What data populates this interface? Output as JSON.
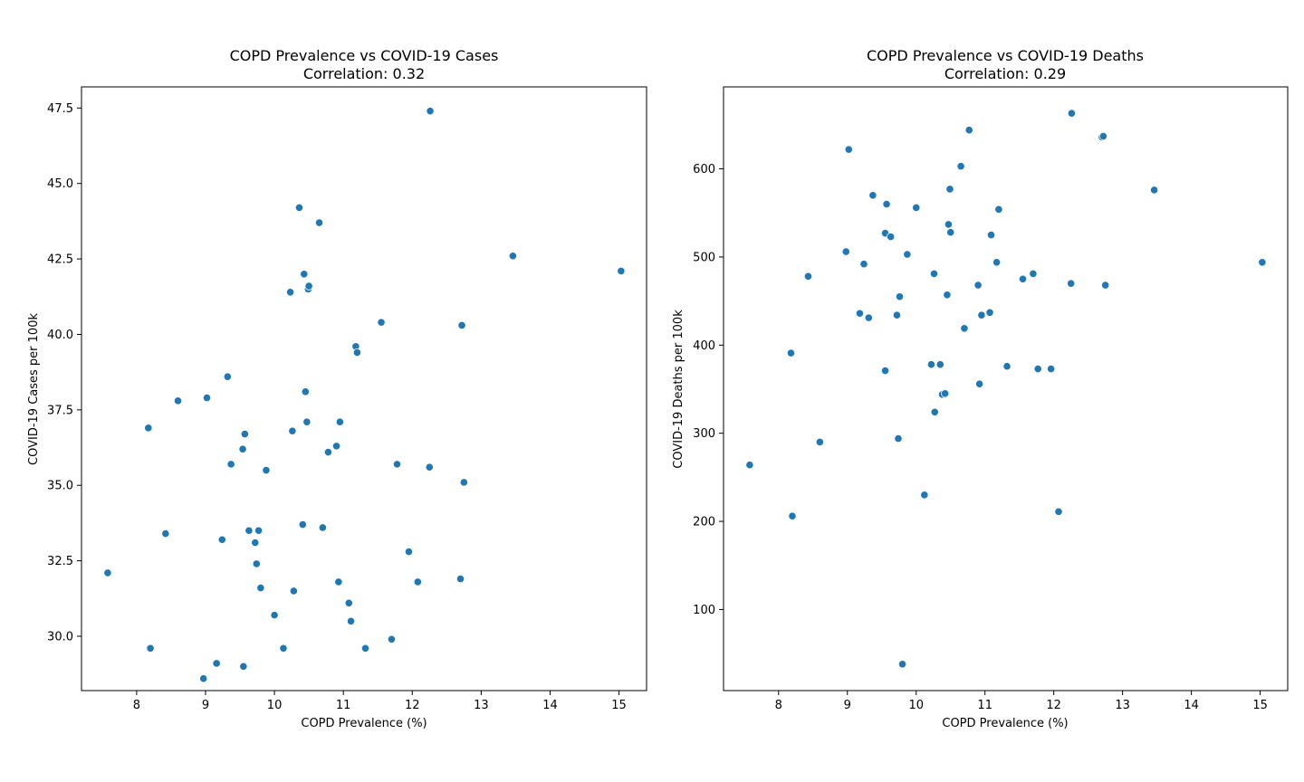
{
  "chart_data": [
    {
      "type": "scatter",
      "title": "COPD Prevalence vs COVID-19 Cases",
      "subtitle": "Correlation: 0.32",
      "xlabel": "COPD Prevalence (%)",
      "ylabel": "COVID-19 Cases per 100k",
      "xlim": [
        7.2,
        15.4
      ],
      "ylim": [
        28.2,
        48.2
      ],
      "xticks": [
        8,
        9,
        10,
        11,
        12,
        13,
        14,
        15
      ],
      "yticks": [
        30.0,
        32.5,
        35.0,
        37.5,
        40.0,
        42.5,
        45.0,
        47.5
      ],
      "xtick_labels": [
        "8",
        "9",
        "10",
        "11",
        "12",
        "13",
        "14",
        "15"
      ],
      "ytick_labels": [
        "30.0",
        "32.5",
        "35.0",
        "37.5",
        "40.0",
        "42.5",
        "45.0",
        "47.5"
      ],
      "grid": false,
      "marker_color": "#1f77b4",
      "series": [
        {
          "points": [
            [
              7.58,
              32.1
            ],
            [
              8.17,
              36.9
            ],
            [
              8.2,
              29.6
            ],
            [
              8.42,
              33.4
            ],
            [
              8.6,
              37.8
            ],
            [
              8.97,
              28.6
            ],
            [
              9.02,
              37.9
            ],
            [
              9.16,
              29.1
            ],
            [
              9.24,
              33.2
            ],
            [
              9.32,
              38.6
            ],
            [
              9.37,
              35.7
            ],
            [
              9.54,
              36.2
            ],
            [
              9.55,
              29.0
            ],
            [
              9.57,
              36.7
            ],
            [
              9.63,
              33.5
            ],
            [
              9.72,
              33.1
            ],
            [
              9.74,
              32.4
            ],
            [
              9.77,
              33.5
            ],
            [
              9.8,
              31.6
            ],
            [
              9.88,
              35.5
            ],
            [
              10.0,
              30.7
            ],
            [
              10.13,
              29.6
            ],
            [
              10.23,
              41.4
            ],
            [
              10.26,
              36.8
            ],
            [
              10.28,
              31.5
            ],
            [
              10.36,
              44.2
            ],
            [
              10.41,
              33.7
            ],
            [
              10.43,
              42.0
            ],
            [
              10.45,
              38.1
            ],
            [
              10.47,
              37.1
            ],
            [
              10.49,
              41.5
            ],
            [
              10.5,
              41.6
            ],
            [
              10.65,
              43.7
            ],
            [
              10.7,
              33.6
            ],
            [
              10.78,
              36.1
            ],
            [
              10.9,
              36.3
            ],
            [
              10.93,
              31.8
            ],
            [
              10.95,
              37.1
            ],
            [
              11.08,
              31.1
            ],
            [
              11.11,
              30.5
            ],
            [
              11.18,
              39.6
            ],
            [
              11.2,
              39.4
            ],
            [
              11.32,
              29.6
            ],
            [
              11.55,
              40.4
            ],
            [
              11.7,
              29.9
            ],
            [
              11.78,
              35.7
            ],
            [
              11.95,
              32.8
            ],
            [
              12.08,
              31.8
            ],
            [
              12.25,
              35.6
            ],
            [
              12.26,
              47.4
            ],
            [
              12.7,
              31.9
            ],
            [
              12.72,
              40.3
            ],
            [
              12.75,
              35.1
            ],
            [
              13.46,
              42.6
            ],
            [
              15.03,
              42.1
            ]
          ]
        }
      ]
    },
    {
      "type": "scatter",
      "title": "COPD Prevalence vs COVID-19 Deaths",
      "subtitle": "Correlation: 0.29",
      "xlabel": "COPD Prevalence (%)",
      "ylabel": "COVID-19 Deaths per 100k",
      "xlim": [
        7.2,
        15.4
      ],
      "ylim": [
        8,
        693
      ],
      "xticks": [
        8,
        9,
        10,
        11,
        12,
        13,
        14,
        15
      ],
      "yticks": [
        100,
        200,
        300,
        400,
        500,
        600
      ],
      "xtick_labels": [
        "8",
        "9",
        "10",
        "11",
        "12",
        "13",
        "14",
        "15"
      ],
      "ytick_labels": [
        "100",
        "200",
        "300",
        "400",
        "500",
        "600"
      ],
      "grid": false,
      "marker_color": "#1f77b4",
      "series": [
        {
          "points": [
            [
              7.58,
              264
            ],
            [
              8.18,
              391
            ],
            [
              8.2,
              206
            ],
            [
              8.43,
              478
            ],
            [
              8.6,
              290
            ],
            [
              8.98,
              506
            ],
            [
              9.02,
              622
            ],
            [
              9.18,
              436
            ],
            [
              9.24,
              492
            ],
            [
              9.31,
              431
            ],
            [
              9.37,
              570
            ],
            [
              9.55,
              371
            ],
            [
              9.55,
              527
            ],
            [
              9.57,
              560
            ],
            [
              9.63,
              523
            ],
            [
              9.72,
              434
            ],
            [
              9.74,
              294
            ],
            [
              9.76,
              455
            ],
            [
              9.8,
              38
            ],
            [
              9.87,
              503
            ],
            [
              10.0,
              556
            ],
            [
              10.12,
              230
            ],
            [
              10.22,
              378
            ],
            [
              10.26,
              481
            ],
            [
              10.27,
              324
            ],
            [
              10.35,
              378
            ],
            [
              10.38,
              344
            ],
            [
              10.42,
              345
            ],
            [
              10.45,
              457
            ],
            [
              10.47,
              537
            ],
            [
              10.49,
              577
            ],
            [
              10.5,
              528
            ],
            [
              10.65,
              603
            ],
            [
              10.7,
              419
            ],
            [
              10.77,
              644
            ],
            [
              10.9,
              468
            ],
            [
              10.92,
              356
            ],
            [
              10.95,
              434
            ],
            [
              11.07,
              437
            ],
            [
              11.09,
              525
            ],
            [
              11.17,
              494
            ],
            [
              11.2,
              554
            ],
            [
              11.32,
              376
            ],
            [
              11.55,
              475
            ],
            [
              11.7,
              481
            ],
            [
              11.77,
              373
            ],
            [
              11.96,
              373
            ],
            [
              12.07,
              211
            ],
            [
              12.25,
              470
            ],
            [
              12.26,
              663
            ],
            [
              12.7,
              636
            ],
            [
              12.72,
              637
            ],
            [
              12.75,
              468
            ],
            [
              13.46,
              576
            ],
            [
              15.03,
              494
            ]
          ]
        }
      ]
    }
  ]
}
